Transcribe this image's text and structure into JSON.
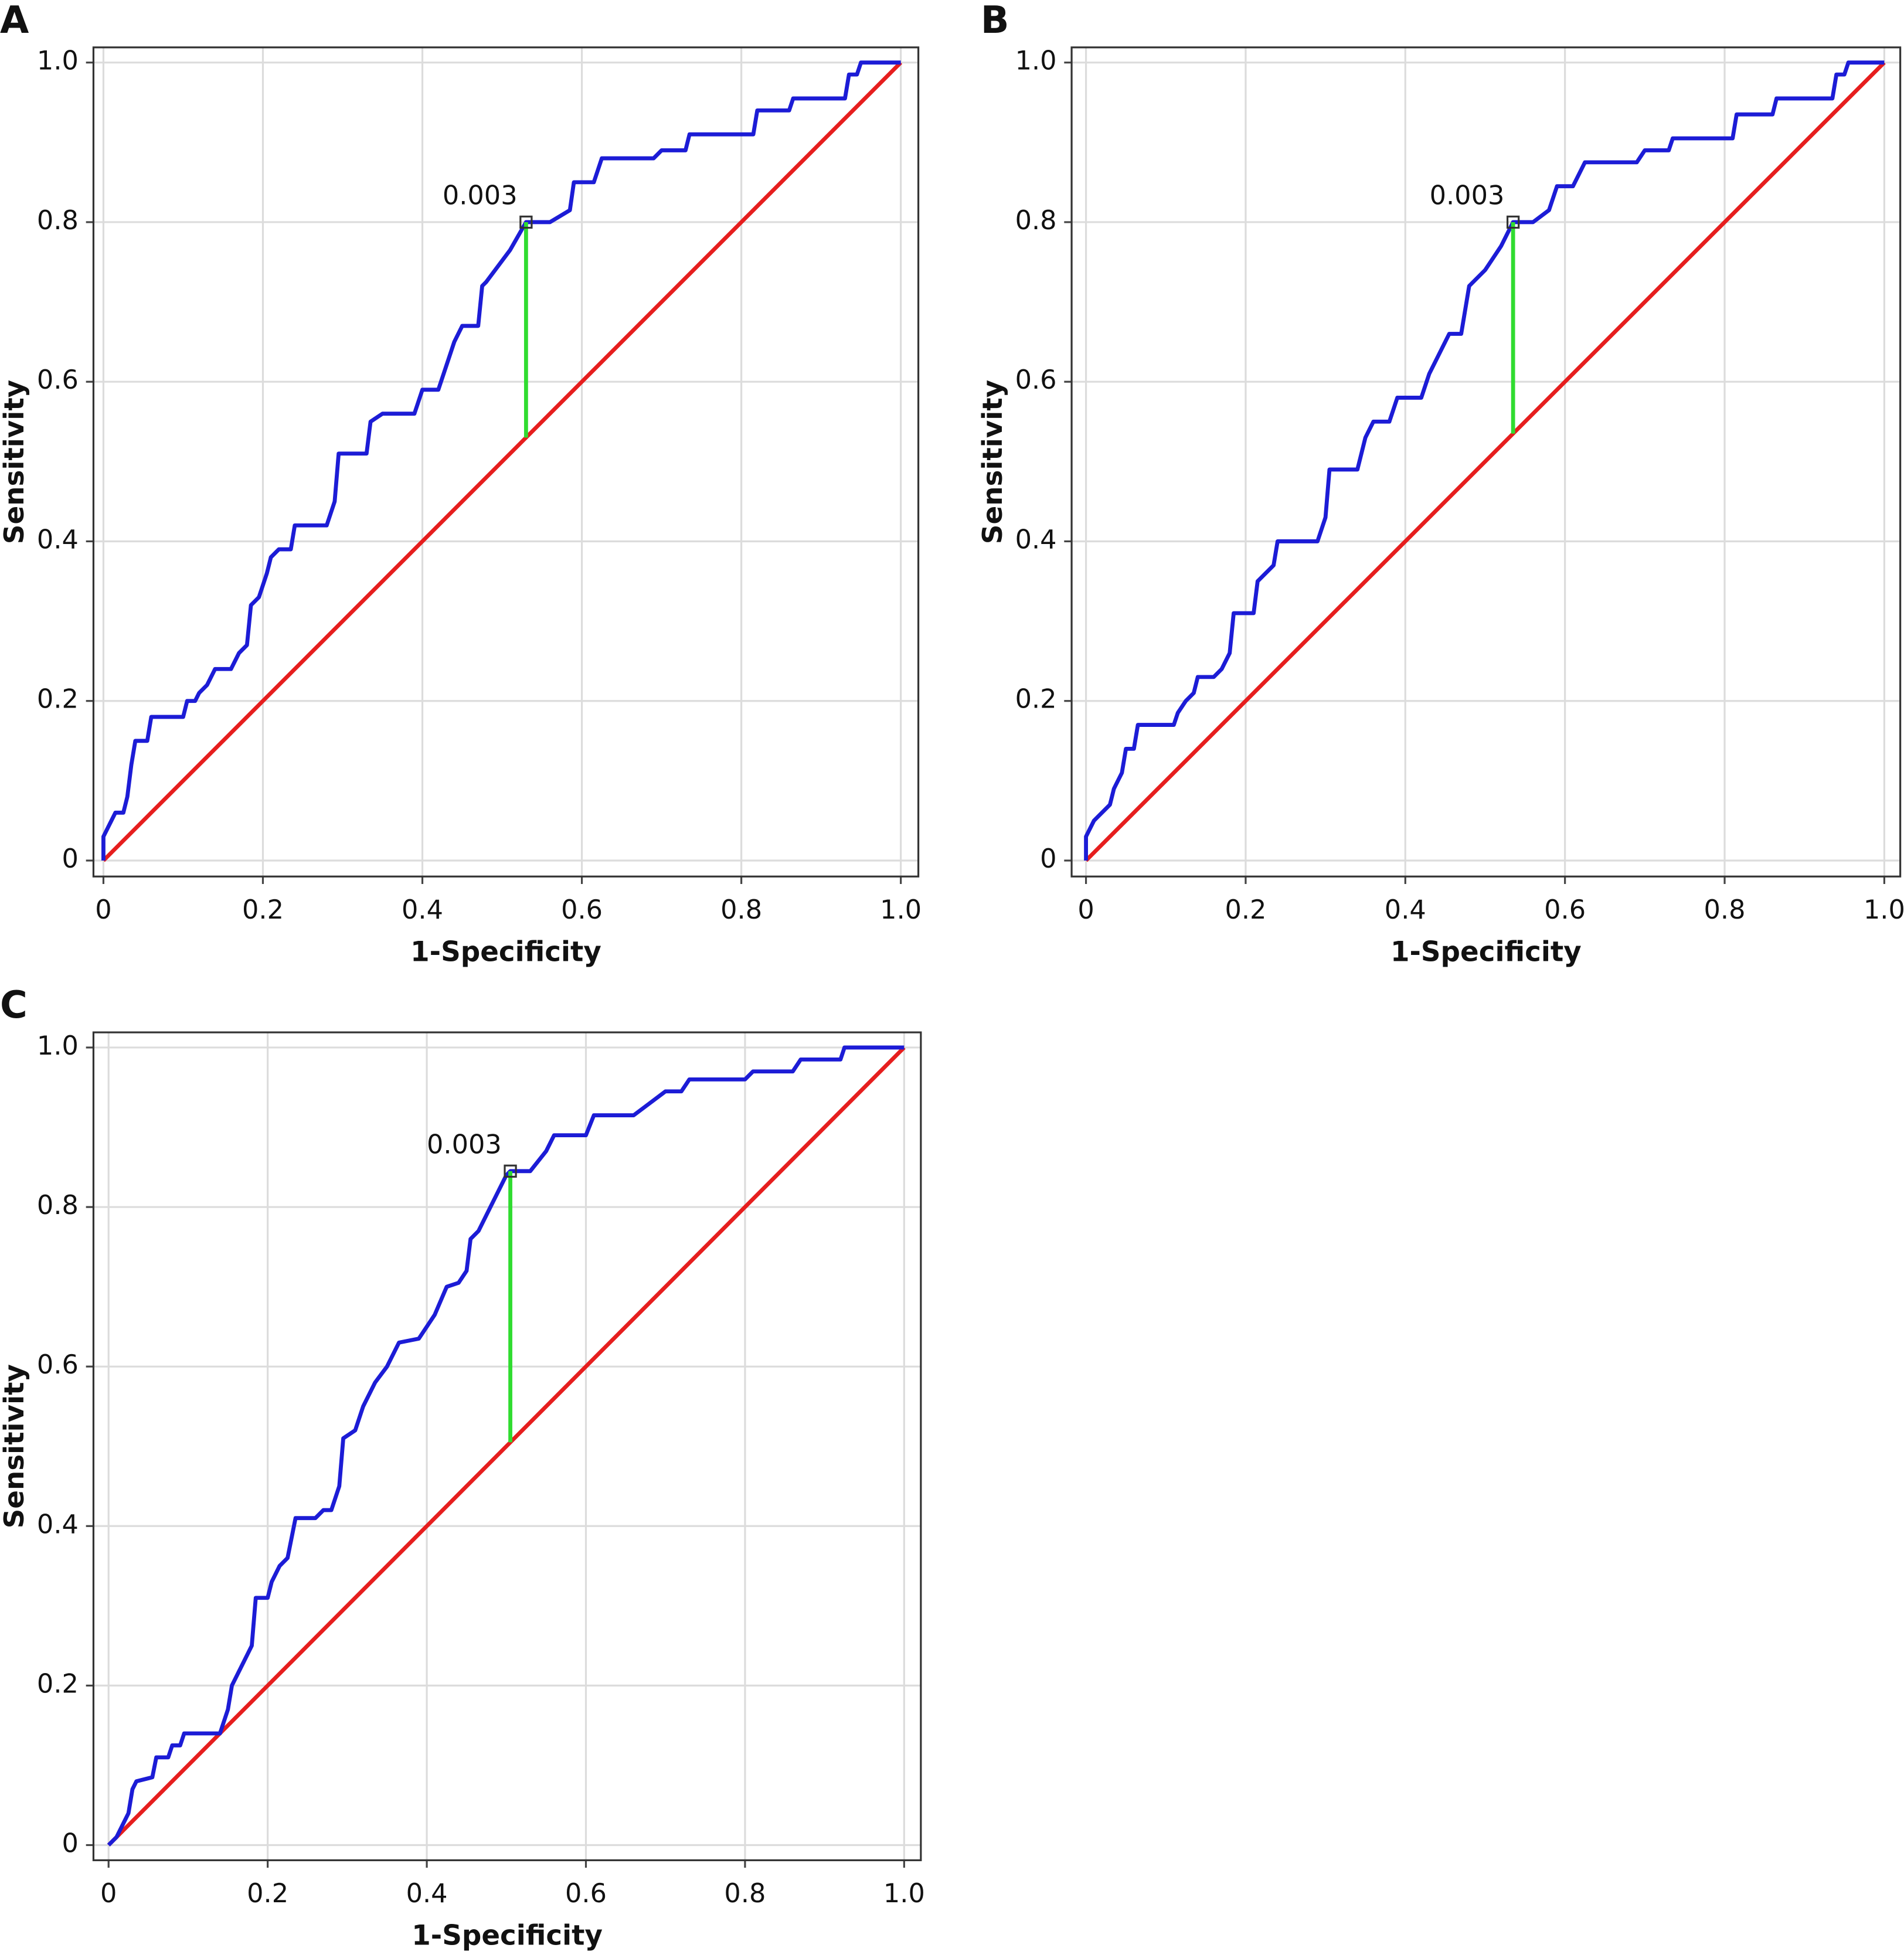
{
  "chart_data": [
    {
      "type": "line",
      "panel": "A",
      "x_label": "1-Specificity",
      "y_label": "Sensitivity",
      "xlim": [
        -0.0125,
        1.022
      ],
      "ylim": [
        -0.02,
        1.019
      ],
      "xticks": [
        0,
        0.2,
        0.4,
        0.6,
        0.8,
        {
          "value": 1,
          "label": "1.0"
        }
      ],
      "yticks": [
        0,
        0.2,
        0.4,
        0.6,
        0.8,
        {
          "value": 1,
          "label": "1.0"
        }
      ],
      "grid": true,
      "series": [
        {
          "color": "#1c1cd6",
          "x": [
            0,
            0,
            0.01,
            0.015,
            0.025,
            0.03,
            0.035,
            0.04,
            0.055,
            0.06,
            0.1,
            0.105,
            0.115,
            0.12,
            0.13,
            0.14,
            0.16,
            0.17,
            0.18,
            0.185,
            0.195,
            0.205,
            0.21,
            0.22,
            0.235,
            0.24,
            0.28,
            0.29,
            0.295,
            0.33,
            0.335,
            0.35,
            0.39,
            0.4,
            0.42,
            0.43,
            0.44,
            0.45,
            0.47,
            0.475,
            0.48,
            0.51,
            0.53,
            0.56,
            0.585,
            0.59,
            0.615,
            0.625,
            0.69,
            0.7,
            0.73,
            0.735,
            0.815,
            0.82,
            0.86,
            0.865,
            0.93,
            0.935,
            0.945,
            0.95,
            1
          ],
          "values": [
            0,
            0.03,
            0.05,
            0.06,
            0.06,
            0.08,
            0.12,
            0.15,
            0.15,
            0.18,
            0.18,
            0.2,
            0.2,
            0.21,
            0.22,
            0.24,
            0.24,
            0.26,
            0.27,
            0.32,
            0.33,
            0.36,
            0.38,
            0.39,
            0.39,
            0.42,
            0.42,
            0.45,
            0.51,
            0.51,
            0.55,
            0.56,
            0.56,
            0.59,
            0.59,
            0.62,
            0.65,
            0.67,
            0.67,
            0.72,
            0.725,
            0.765,
            0.8,
            0.8,
            0.815,
            0.85,
            0.85,
            0.88,
            0.88,
            0.89,
            0.89,
            0.91,
            0.91,
            0.94,
            0.94,
            0.955,
            0.955,
            0.985,
            0.985,
            1,
            1
          ]
        },
        {
          "color": "#e61e1e",
          "x": [
            0,
            1
          ],
          "values": [
            0,
            1
          ]
        },
        {
          "color": "#30dc30",
          "x": [
            0.53,
            0.53
          ],
          "values": [
            0.53,
            0.8
          ]
        }
      ],
      "annotation": {
        "text": "0.003",
        "x": 0.53,
        "y": 0.8
      }
    },
    {
      "type": "line",
      "panel": "B",
      "x_label": "1-Specificity",
      "y_label": "Sensitivity",
      "xlim": [
        -0.018,
        1.02
      ],
      "ylim": [
        -0.02,
        1.019
      ],
      "xticks": [
        0,
        0.2,
        0.4,
        0.6,
        0.8,
        {
          "value": 1,
          "label": "1.0"
        }
      ],
      "yticks": [
        0,
        0.2,
        0.4,
        0.6,
        0.8,
        {
          "value": 1,
          "label": "1.0"
        }
      ],
      "grid": true,
      "series": [
        {
          "color": "#1c1cd6",
          "x": [
            0,
            0,
            0.01,
            0.02,
            0.03,
            0.035,
            0.045,
            0.05,
            0.06,
            0.065,
            0.11,
            0.115,
            0.125,
            0.135,
            0.14,
            0.16,
            0.17,
            0.18,
            0.185,
            0.21,
            0.215,
            0.225,
            0.235,
            0.24,
            0.29,
            0.3,
            0.305,
            0.34,
            0.35,
            0.36,
            0.38,
            0.39,
            0.42,
            0.43,
            0.44,
            0.455,
            0.47,
            0.48,
            0.5,
            0.52,
            0.535,
            0.56,
            0.58,
            0.59,
            0.61,
            0.625,
            0.69,
            0.7,
            0.73,
            0.735,
            0.81,
            0.815,
            0.86,
            0.865,
            0.935,
            0.94,
            0.95,
            0.955,
            1
          ],
          "values": [
            0,
            0.03,
            0.05,
            0.06,
            0.07,
            0.09,
            0.11,
            0.14,
            0.14,
            0.17,
            0.17,
            0.185,
            0.2,
            0.21,
            0.23,
            0.23,
            0.24,
            0.26,
            0.31,
            0.31,
            0.35,
            0.36,
            0.37,
            0.4,
            0.4,
            0.43,
            0.49,
            0.49,
            0.53,
            0.55,
            0.55,
            0.58,
            0.58,
            0.61,
            0.63,
            0.66,
            0.66,
            0.72,
            0.74,
            0.77,
            0.8,
            0.8,
            0.815,
            0.845,
            0.845,
            0.875,
            0.875,
            0.89,
            0.89,
            0.905,
            0.905,
            0.935,
            0.935,
            0.955,
            0.955,
            0.985,
            0.985,
            1,
            1
          ]
        },
        {
          "color": "#e61e1e",
          "x": [
            0,
            1
          ],
          "values": [
            0,
            1
          ]
        },
        {
          "color": "#30dc30",
          "x": [
            0.535,
            0.535
          ],
          "values": [
            0.535,
            0.8
          ]
        }
      ],
      "annotation": {
        "text": "0.003",
        "x": 0.535,
        "y": 0.8
      }
    },
    {
      "type": "line",
      "panel": "C",
      "x_label": "1-Specificity",
      "y_label": "Sensitivity",
      "xlim": [
        -0.019,
        1.021
      ],
      "ylim": [
        -0.019,
        1.019
      ],
      "xticks": [
        0,
        0.2,
        0.4,
        0.6,
        0.8,
        {
          "value": 1,
          "label": "1.0"
        }
      ],
      "yticks": [
        0,
        0.2,
        0.4,
        0.6,
        0.8,
        {
          "value": 1,
          "label": "1.0"
        }
      ],
      "grid": true,
      "series": [
        {
          "color": "#1c1cd6",
          "x": [
            0,
            0.01,
            0.015,
            0.02,
            0.025,
            0.03,
            0.035,
            0.055,
            0.06,
            0.075,
            0.08,
            0.09,
            0.095,
            0.14,
            0.15,
            0.155,
            0.165,
            0.175,
            0.18,
            0.185,
            0.2,
            0.205,
            0.215,
            0.225,
            0.235,
            0.26,
            0.27,
            0.28,
            0.29,
            0.295,
            0.31,
            0.32,
            0.335,
            0.35,
            0.365,
            0.39,
            0.41,
            0.425,
            0.44,
            0.45,
            0.455,
            0.465,
            0.48,
            0.5,
            0.505,
            0.53,
            0.55,
            0.56,
            0.6,
            0.61,
            0.66,
            0.68,
            0.7,
            0.72,
            0.73,
            0.8,
            0.81,
            0.86,
            0.87,
            0.92,
            0.925,
            1
          ],
          "values": [
            0,
            0.01,
            0.02,
            0.03,
            0.04,
            0.07,
            0.08,
            0.085,
            0.11,
            0.11,
            0.125,
            0.125,
            0.14,
            0.14,
            0.17,
            0.2,
            0.22,
            0.24,
            0.25,
            0.31,
            0.31,
            0.33,
            0.35,
            0.36,
            0.41,
            0.41,
            0.42,
            0.42,
            0.45,
            0.51,
            0.52,
            0.55,
            0.58,
            0.6,
            0.63,
            0.635,
            0.665,
            0.7,
            0.705,
            0.72,
            0.76,
            0.77,
            0.8,
            0.84,
            0.845,
            0.845,
            0.87,
            0.89,
            0.89,
            0.915,
            0.915,
            0.93,
            0.945,
            0.945,
            0.96,
            0.96,
            0.97,
            0.97,
            0.985,
            0.985,
            1,
            1
          ]
        },
        {
          "color": "#e61e1e",
          "x": [
            0,
            1
          ],
          "values": [
            0,
            1
          ]
        },
        {
          "color": "#30dc30",
          "x": [
            0.505,
            0.505
          ],
          "values": [
            0.505,
            0.845
          ]
        }
      ],
      "annotation": {
        "text": "0.003",
        "x": 0.505,
        "y": 0.845
      }
    }
  ]
}
